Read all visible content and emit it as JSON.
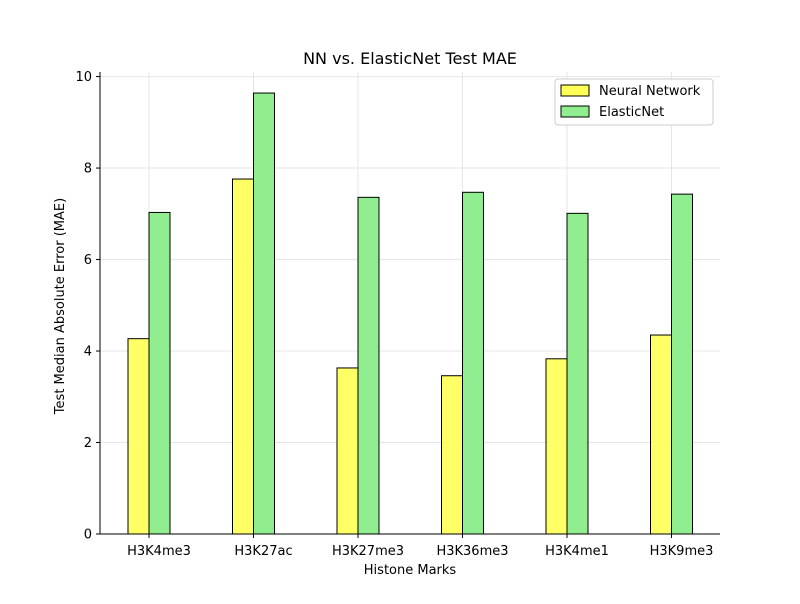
{
  "chart_data": {
    "type": "bar",
    "title": "NN vs. ElasticNet Test MAE",
    "xlabel": "Histone Marks",
    "ylabel": "Test Median Absolute Error (MAE)",
    "categories": [
      "H3K4me3",
      "H3K27ac",
      "H3K27me3",
      "H3K36me3",
      "H3K4me1",
      "H3K9me3"
    ],
    "series": [
      {
        "name": "Neural Network",
        "values": [
          4.27,
          7.76,
          3.63,
          3.46,
          3.83,
          4.35
        ],
        "color": "#ffff55"
      },
      {
        "name": "ElasticNet",
        "values": [
          7.03,
          9.64,
          7.36,
          7.47,
          7.01,
          7.43
        ],
        "color": "#90ee90"
      }
    ],
    "ylim": [
      0,
      10.1
    ],
    "yticks": [
      0,
      2,
      4,
      6,
      8,
      10
    ],
    "grid": true,
    "legend_position": "top-right"
  }
}
